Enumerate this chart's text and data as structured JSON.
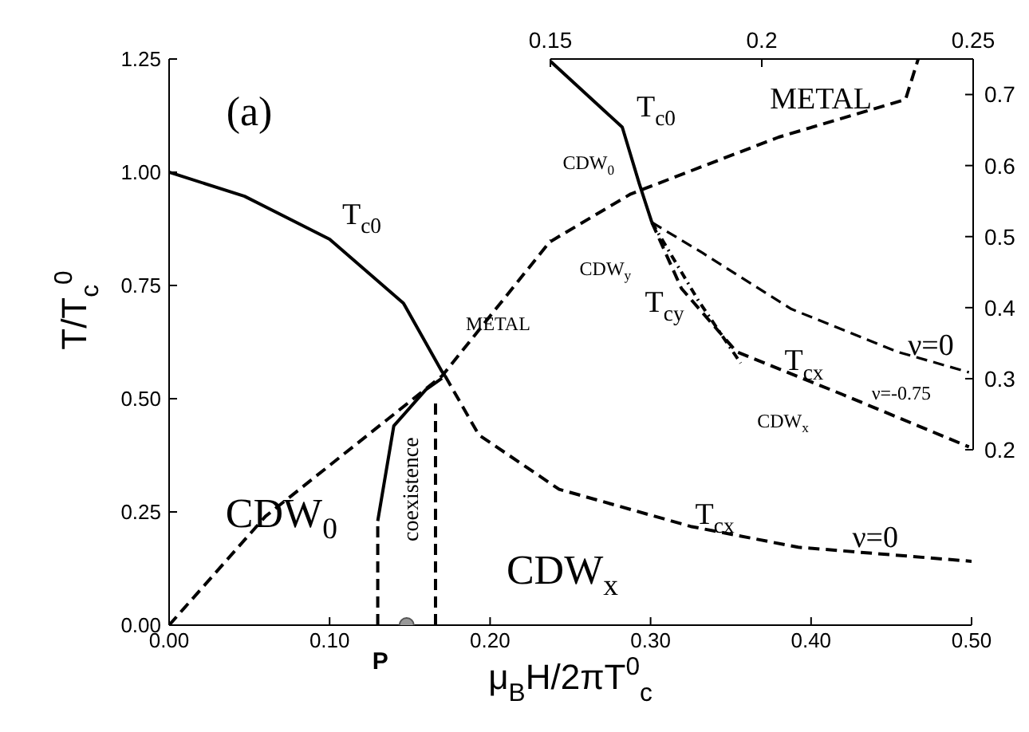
{
  "chart_data": [
    {
      "type": "line",
      "xlabel": "μ$_{B}$H/2πT$^{0}$$_{c}$",
      "ylabel": "T/T$_{c}$$^{0}$",
      "xlim": [
        0,
        0.5
      ],
      "xticks": [
        {
          "value": 0,
          "label": "0.00"
        },
        {
          "value": 0.1,
          "label": "0.10"
        },
        {
          "value": 0.2,
          "label": "0.20"
        },
        {
          "value": 0.3,
          "label": "0.30"
        },
        {
          "value": 0.4,
          "label": "0.40"
        },
        {
          "value": 0.5,
          "label": "0.50"
        }
      ],
      "ylim": [
        0,
        1.25
      ],
      "yticks": [
        {
          "value": 0,
          "label": "0.00"
        },
        {
          "value": 0.25,
          "label": "0.25"
        },
        {
          "value": 0.5,
          "label": "0.50"
        },
        {
          "value": 0.75,
          "label": "0.75"
        },
        {
          "value": 1,
          "label": "1.00"
        },
        {
          "value": 1.25,
          "label": "1.25"
        }
      ],
      "grid": false,
      "marker": "none",
      "series": [
        {
          "color": "#000000",
          "line_style": "solid",
          "x": [
            0,
            0.047,
            0.1,
            0.146,
            0.17,
            0.172
          ],
          "values": [
            1.0,
            0.947,
            0.852,
            0.711,
            0.56,
            0.55
          ]
        },
        {
          "color": "#000000",
          "line_style": "dashed",
          "x": [
            0.172,
            0.193,
            0.243,
            0.325,
            0.392,
            0.5
          ],
          "values": [
            0.55,
            0.42,
            0.3,
            0.218,
            0.172,
            0.141
          ]
        },
        {
          "color": "#000000",
          "line_style": "dashed",
          "x": [
            0,
            0.06,
            0.17,
            0.238
          ],
          "values": [
            0,
            0.24,
            0.55,
            0.85
          ]
        },
        {
          "color": "#000000",
          "line_style": "solid",
          "x": [
            0.13,
            0.14,
            0.16,
            0.17
          ],
          "values": [
            0.23,
            0.44,
            0.52,
            0.545
          ]
        },
        {
          "color": "#000000",
          "line_style": "dashed",
          "x": [
            0.13,
            0.13
          ],
          "values": [
            0,
            0.22
          ]
        },
        {
          "color": "#000000",
          "line_style": "dashed",
          "x": [
            0.166,
            0.166
          ],
          "values": [
            0,
            0.5
          ]
        },
        {
          "type": "scatter",
          "name": "P",
          "marker": "circle",
          "color": "#999999",
          "x": [
            0.148
          ],
          "values": [
            0
          ]
        }
      ],
      "annotations": [
        "(a)",
        "T$_{c0}$",
        "METAL",
        "CDW$_{0}$",
        "coexistence",
        "T$_{cx}$",
        "ν=0",
        "CDW$_{x}$"
      ]
    },
    {
      "type": "line",
      "xlim": [
        0.15,
        0.25
      ],
      "xticks": [
        0.15,
        0.2,
        0.25
      ],
      "ylim": [
        0.2,
        0.75
      ],
      "yticks": [
        0.2,
        0.3,
        0.4,
        0.5,
        0.6,
        0.7
      ],
      "grid": false,
      "marker": "none",
      "series": [
        {
          "color": "#000000",
          "line_style": "solid",
          "x": [
            0.15,
            0.167,
            0.171,
            0.174
          ],
          "values": [
            0.747,
            0.654,
            0.575,
            0.52
          ]
        },
        {
          "color": "#000000",
          "line_style": "dashed",
          "x": [
            0.15,
            0.169,
            0.204,
            0.234,
            0.237
          ],
          "values": [
            0.493,
            0.56,
            0.64,
            0.693,
            0.75
          ]
        },
        {
          "color": "#000000",
          "line_style": "dashed",
          "x": [
            0.174,
            0.186,
            0.207,
            0.232,
            0.249
          ],
          "values": [
            0.52,
            0.477,
            0.398,
            0.338,
            0.309
          ]
        },
        {
          "color": "#000000",
          "line_style": "dotted",
          "x": [
            0.174,
            0.185,
            0.195
          ],
          "values": [
            0.52,
            0.41,
            0.322
          ]
        },
        {
          "color": "#000000",
          "line_style": "dashed",
          "x": [
            0.174,
            0.181,
            0.194,
            0.219,
            0.249
          ],
          "values": [
            0.52,
            0.427,
            0.338,
            0.278,
            0.204
          ]
        }
      ],
      "annotations": [
        "T$_{c0}$",
        "METAL",
        "CDW$_{0}$",
        "CDW$_{y}$",
        "T$_{cy}$",
        "T$_{cx}$",
        "ν=0",
        "ν=-0.75",
        "CDW$_{x}$"
      ]
    }
  ]
}
